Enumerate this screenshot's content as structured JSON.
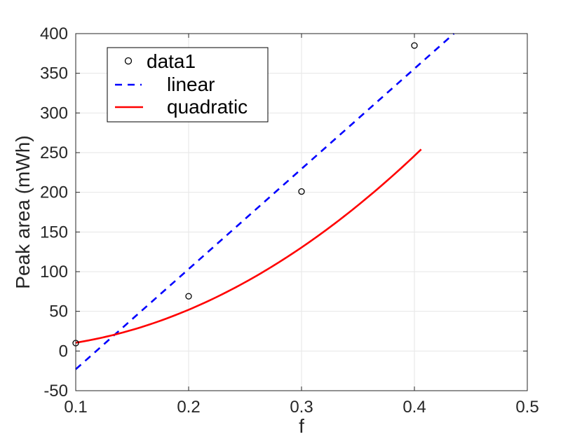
{
  "chart_data": {
    "type": "line",
    "title": "",
    "xlabel": "f",
    "ylabel": "Peak area (mWh)",
    "xlim": [
      0.1,
      0.5
    ],
    "ylim": [
      -50,
      400
    ],
    "xticks": [
      0.1,
      0.2,
      0.3,
      0.4,
      0.5
    ],
    "xtick_labels": [
      "0.1",
      "0.2",
      "0.3",
      "0.4",
      "0.5"
    ],
    "yticks": [
      -50,
      0,
      50,
      100,
      150,
      200,
      250,
      300,
      350,
      400
    ],
    "ytick_labels": [
      "-50",
      "0",
      "50",
      "100",
      "150",
      "200",
      "250",
      "300",
      "350",
      "400"
    ],
    "grid": true,
    "legend_position": "top-left",
    "series": [
      {
        "name": "data1",
        "kind": "scatter",
        "marker": "circle-open",
        "color": "#000000",
        "x": [
          0.1,
          0.2,
          0.3,
          0.4
        ],
        "y": [
          10,
          69,
          201,
          385
        ]
      },
      {
        "name": "linear",
        "kind": "line",
        "style": "dashed",
        "color": "#0000ff",
        "x": [
          0.1,
          0.435
        ],
        "y": [
          -23,
          400
        ]
      },
      {
        "name": "quadratic",
        "kind": "line",
        "style": "solid",
        "color": "#ff0000",
        "coefficients": [
          1850,
          -140,
          6
        ],
        "x_range": [
          0.1,
          0.406
        ]
      }
    ]
  }
}
